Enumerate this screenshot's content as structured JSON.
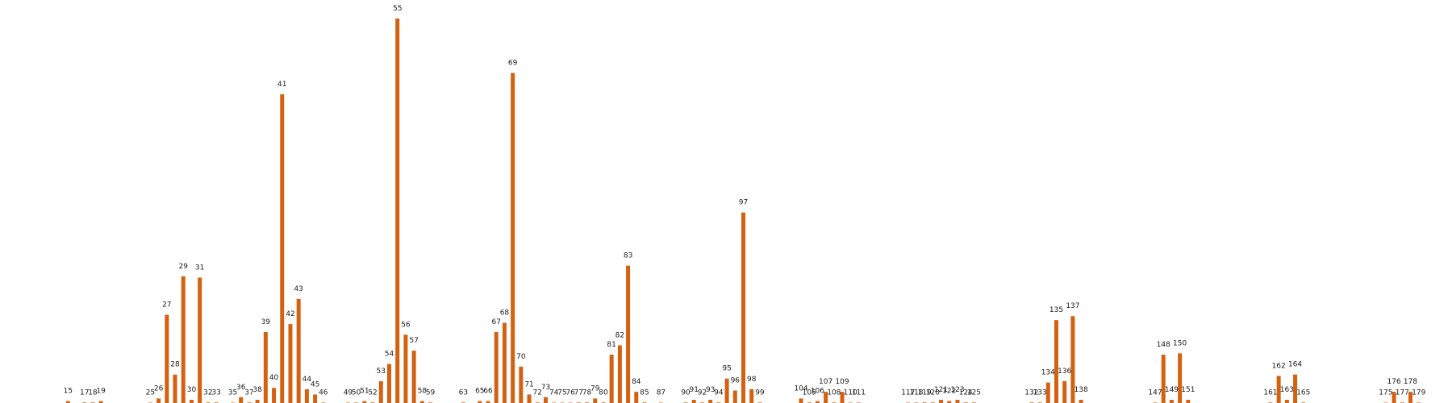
{
  "chart_data": {
    "type": "bar",
    "color": "#d4610f",
    "categories": [
      "15",
      "17",
      "18",
      "19",
      "25",
      "26",
      "27",
      "28",
      "29",
      "30",
      "31",
      "32",
      "33",
      "35",
      "36",
      "37",
      "38",
      "39",
      "40",
      "41",
      "42",
      "43",
      "44",
      "45",
      "46",
      "49",
      "50",
      "51",
      "52",
      "53",
      "54",
      "55",
      "56",
      "57",
      "58",
      "59",
      "63",
      "65",
      "66",
      "67",
      "68",
      "69",
      "70",
      "71",
      "72",
      "73",
      "74",
      "75",
      "76",
      "77",
      "78",
      "79",
      "80",
      "81",
      "82",
      "83",
      "84",
      "85",
      "87",
      "90",
      "91",
      "92",
      "93",
      "94",
      "95",
      "96",
      "97",
      "98",
      "99",
      "104",
      "105",
      "106",
      "107",
      "108",
      "109",
      "110",
      "111",
      "117",
      "118",
      "119",
      "120",
      "121",
      "122",
      "123",
      "124",
      "125",
      "132",
      "133",
      "134",
      "135",
      "136",
      "137",
      "138",
      "147",
      "148",
      "149",
      "150",
      "151",
      "161",
      "162",
      "163",
      "164",
      "165",
      "175",
      "176",
      "177",
      "178",
      "179"
    ],
    "values": [
      2,
      1,
      1,
      2,
      0,
      4,
      67,
      22,
      96,
      3,
      95,
      1,
      1,
      0,
      5,
      1,
      3,
      54,
      12,
      233,
      60,
      79,
      11,
      7,
      0,
      0,
      0,
      2,
      1,
      17,
      30,
      290,
      52,
      40,
      2,
      1,
      1,
      2,
      2,
      54,
      61,
      249,
      28,
      7,
      1,
      5,
      0,
      0,
      0,
      1,
      1,
      4,
      1,
      37,
      44,
      104,
      9,
      1,
      0,
      1,
      3,
      1,
      3,
      1,
      19,
      10,
      144,
      11,
      1,
      4,
      1,
      2,
      9,
      1,
      9,
      0,
      0,
      0,
      0,
      1,
      1,
      3,
      2,
      3,
      1,
      1,
      1,
      1,
      16,
      63,
      17,
      66,
      3,
      0,
      37,
      3,
      38,
      3,
      1,
      21,
      3,
      22,
      1,
      0,
      9,
      1,
      9,
      0
    ],
    "ylim": [
      0,
      290
    ]
  }
}
